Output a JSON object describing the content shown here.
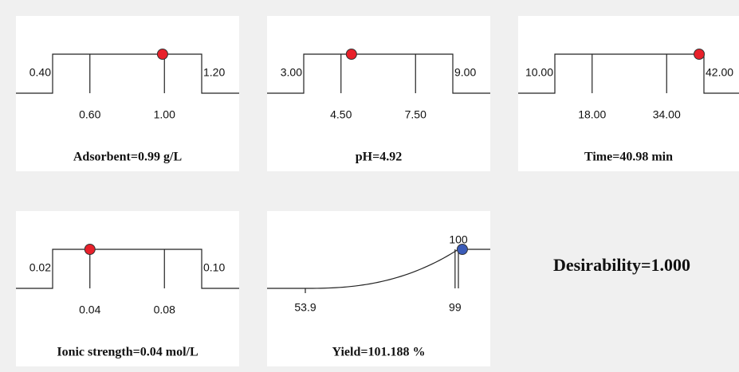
{
  "panels": [
    {
      "shape": "ramp",
      "title": "Adsorbent=0.99 g/L",
      "low": {
        "value": 0.4,
        "label": "0.40"
      },
      "high": {
        "value": 1.2,
        "label": "1.20"
      },
      "ticks": [
        {
          "value": 0.6,
          "label": "0.60"
        },
        {
          "value": 1,
          "label": "1.00"
        }
      ],
      "value": 0.99,
      "color": "#e8202a"
    },
    {
      "shape": "ramp",
      "title": "pH=4.92",
      "low": {
        "value": 3,
        "label": "3.00"
      },
      "high": {
        "value": 9,
        "label": "9.00"
      },
      "ticks": [
        {
          "value": 4.5,
          "label": "4.50"
        },
        {
          "value": 7.5,
          "label": "7.50"
        }
      ],
      "value": 4.92,
      "color": "#e8202a"
    },
    {
      "shape": "ramp",
      "title": "Time=40.98 min",
      "low": {
        "value": 10,
        "label": "10.00"
      },
      "high": {
        "value": 42,
        "label": "42.00"
      },
      "ticks": [
        {
          "value": 18,
          "label": "18.00"
        },
        {
          "value": 34,
          "label": "34.00"
        }
      ],
      "value": 40.98,
      "color": "#e8202a"
    },
    {
      "shape": "ramp",
      "title": "Ionic strength=0.04 mol/L",
      "low": {
        "value": 0.02,
        "label": "0.02"
      },
      "high": {
        "value": 0.1,
        "label": "0.10"
      },
      "ticks": [
        {
          "value": 0.04,
          "label": "0.04"
        },
        {
          "value": 0.08,
          "label": "0.08"
        }
      ],
      "value": 0.04,
      "color": "#e8202a"
    },
    {
      "shape": "curve",
      "title": "Yield=101.188 %",
      "low": 53.9,
      "high": 100,
      "ticks": [
        99
      ],
      "value": 101.188,
      "color": "#3a5bb8"
    }
  ],
  "desirability": "Desirability=1.000"
}
